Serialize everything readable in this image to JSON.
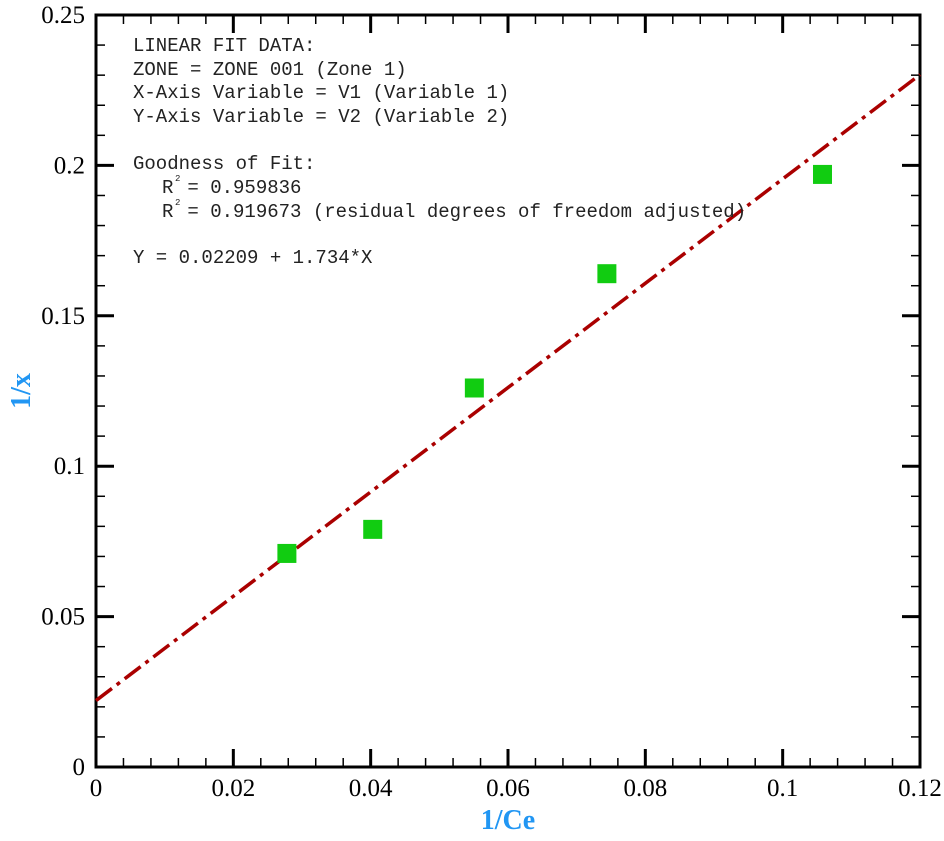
{
  "chart_data": {
    "type": "scatter",
    "xlabel": "1/Ce",
    "ylabel": "1/x",
    "xlim": [
      0,
      0.12
    ],
    "ylim": [
      0,
      0.25
    ],
    "xticks": [
      "0",
      "0.02",
      "0.04",
      "0.06",
      "0.08",
      "0.1",
      "0.12"
    ],
    "yticks": [
      "0",
      "0.05",
      "0.1",
      "0.15",
      "0.2",
      "0.25"
    ],
    "grid": false,
    "series": [
      {
        "type": "scatter",
        "marker": "square",
        "color": "#11cc11",
        "x": [
          0.0278,
          0.0403,
          0.0551,
          0.0744,
          0.1058
        ],
        "y": [
          0.071,
          0.079,
          0.126,
          0.164,
          0.197
        ]
      },
      {
        "type": "line",
        "style": "dash-dot",
        "color": "#aa0000",
        "intercept": 0.02209,
        "slope": 1.734
      }
    ],
    "annotation": {
      "lines": [
        "LINEAR FIT DATA:",
        "ZONE = ZONE 001 (Zone 1)",
        "X-Axis Variable = V1 (Variable 1)",
        "Y-Axis Variable = V2 (Variable 2)",
        "Goodness of Fit:"
      ],
      "r2_lines": [
        {
          "label": "R",
          "sup": "2",
          "text": " = 0.959836"
        },
        {
          "label": "R",
          "sup": "2",
          "text": " = 0.919673 (residual degrees of freedom adjusted)"
        }
      ],
      "equation": "Y = 0.02209 + 1.734*X"
    }
  }
}
